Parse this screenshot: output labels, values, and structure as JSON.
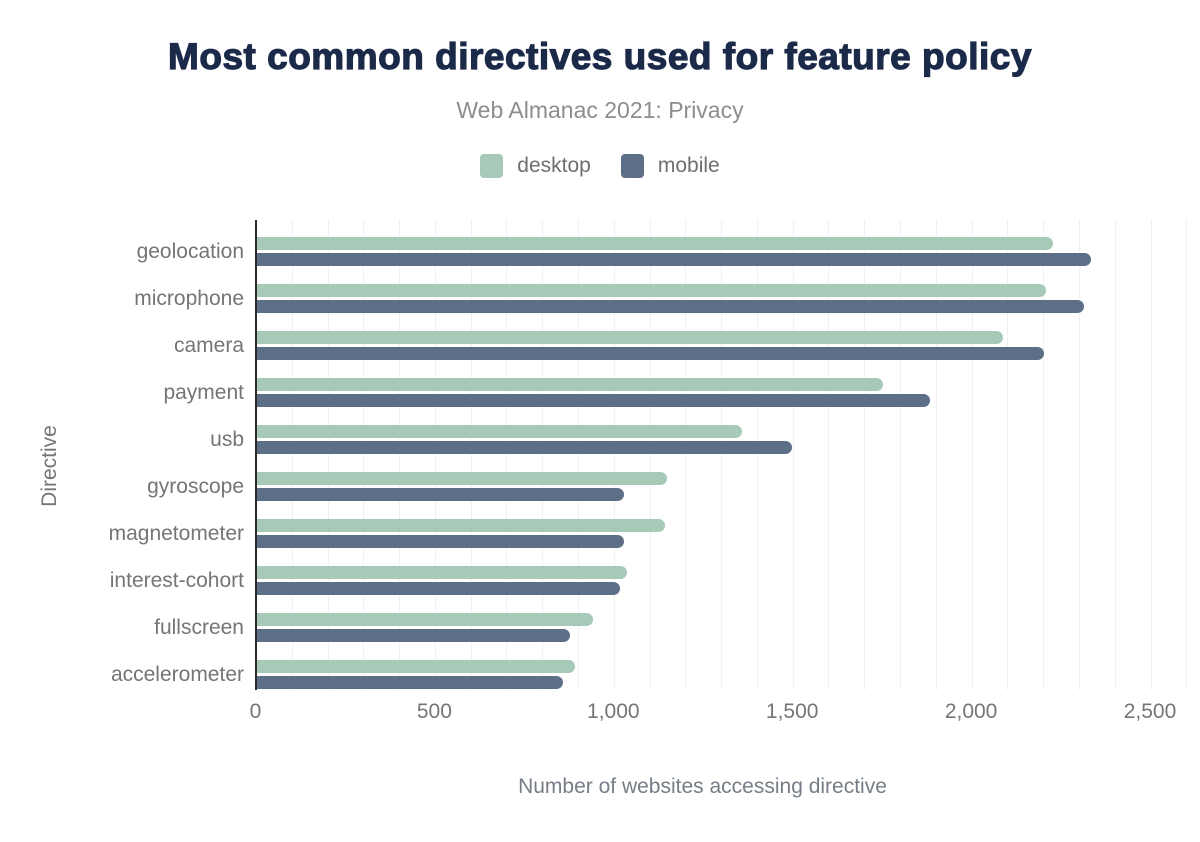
{
  "chart_data": {
    "type": "bar",
    "orientation": "horizontal",
    "title": "Most common directives used for feature policy",
    "subtitle": "Web Almanac 2021: Privacy",
    "xlabel": "Number of websites accessing directive",
    "ylabel": "Directive",
    "categories": [
      "geolocation",
      "microphone",
      "camera",
      "payment",
      "usb",
      "gyroscope",
      "magnetometer",
      "interest-cohort",
      "fullscreen",
      "accelerometer"
    ],
    "series": [
      {
        "name": "desktop",
        "color": "#a7c9b8",
        "values": [
          2225,
          2205,
          2085,
          1750,
          1355,
          1145,
          1140,
          1035,
          940,
          890
        ]
      },
      {
        "name": "mobile",
        "color": "#5d6e87",
        "values": [
          2330,
          2310,
          2200,
          1880,
          1495,
          1025,
          1025,
          1015,
          875,
          855
        ]
      }
    ],
    "x_axis": {
      "xlim": [
        0,
        2640
      ],
      "tick_step": 500,
      "tick_labels": [
        "0",
        "500",
        "1,000",
        "1,500",
        "2,000",
        "2,500"
      ],
      "grid_step": 100,
      "grid_max": 2600,
      "grid": true
    },
    "legend_position": "top"
  },
  "colors": {
    "title": "#1c2a4a",
    "subtitle": "#8d8d8d",
    "axis_labels": "#757575",
    "axis_line": "#2b2b2b",
    "gridline": "#f0f0f2",
    "background": "#ffffff",
    "desktop": "#a7c9b8",
    "mobile": "#5d6e87"
  }
}
